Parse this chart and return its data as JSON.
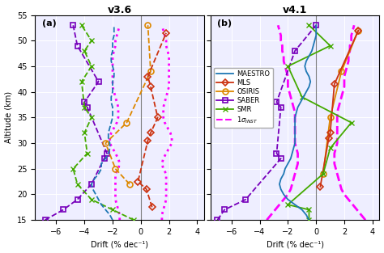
{
  "title_a": "v3.6",
  "title_b": "v4.1",
  "label_a": "(a)",
  "label_b": "(b)",
  "xlabel": "Drift (% dec⁻¹)",
  "ylabel": "Altitude (km)",
  "xlim": [
    -7.5,
    4.5
  ],
  "ylim": [
    15,
    55
  ],
  "yticks": [
    15,
    20,
    25,
    30,
    35,
    40,
    45,
    50,
    55
  ],
  "xticks": [
    -6,
    -4,
    -2,
    0,
    2,
    4
  ],
  "colors": {
    "MAESTRO": "#1e77b4",
    "MLS": "#cc3311",
    "OSIRIS": "#dd8800",
    "SABER": "#7700bb",
    "SMR": "#44aa00",
    "sigma": "#ff00ff"
  },
  "bg_color": "#eeeeff",
  "v36": {
    "MAESTRO_alt": [
      15,
      16,
      17,
      18,
      19,
      20,
      21,
      22,
      23,
      24,
      25,
      26,
      27,
      28,
      29,
      30,
      31,
      32,
      33,
      34,
      35,
      36,
      37,
      38,
      39,
      40,
      41,
      42,
      43,
      44,
      45,
      46,
      47,
      48,
      49,
      50,
      51,
      52,
      53
    ],
    "MAESTRO_drift": [
      -2.0,
      -2.2,
      -2.5,
      -2.8,
      -3.0,
      -3.2,
      -3.4,
      -3.5,
      -3.3,
      -3.0,
      -2.8,
      -2.8,
      -2.5,
      -2.3,
      -2.2,
      -2.2,
      -2.3,
      -2.3,
      -2.2,
      -2.1,
      -2.0,
      -2.0,
      -2.0,
      -2.1,
      -2.1,
      -2.0,
      -2.0,
      -2.0,
      -1.9,
      -1.9,
      -2.0,
      -2.1,
      -2.1,
      -2.0,
      -2.0,
      -2.0,
      -1.9,
      -1.9,
      -1.9
    ],
    "MLS_alt": [
      17.5,
      21,
      22.5,
      30.5,
      32,
      35,
      41,
      43,
      51.5
    ],
    "MLS_drift": [
      0.8,
      0.4,
      -0.2,
      0.5,
      0.7,
      1.2,
      0.7,
      0.5,
      1.8
    ],
    "OSIRIS_alt": [
      22,
      25,
      30,
      34,
      44,
      53
    ],
    "OSIRIS_drift": [
      -0.8,
      -1.8,
      -2.5,
      -1.0,
      0.7,
      0.5
    ],
    "SABER_alt": [
      15,
      17,
      19,
      22,
      27,
      28,
      37,
      38,
      42,
      49,
      53
    ],
    "SABER_drift": [
      -6.8,
      -5.5,
      -4.5,
      -3.5,
      -2.6,
      -2.4,
      -3.8,
      -4.0,
      -3.0,
      -4.5,
      -4.8
    ],
    "SMR_alt": [
      15,
      17,
      19,
      22,
      25,
      28,
      32,
      35,
      37,
      42,
      45,
      48,
      50,
      53
    ],
    "SMR_drift": [
      -0.5,
      -2.0,
      -3.5,
      -4.5,
      -4.8,
      -3.8,
      -4.0,
      -3.5,
      -4.0,
      -4.2,
      -3.5,
      -4.0,
      -3.5,
      -4.2
    ],
    "sigma_alt": [
      15,
      16,
      17,
      18,
      19,
      20,
      21,
      22,
      23,
      24,
      25,
      26,
      27,
      28,
      29,
      30,
      31,
      32,
      33,
      34,
      35,
      36,
      37,
      38,
      39,
      40,
      41,
      42,
      43,
      44,
      45,
      46,
      47,
      48,
      49,
      50,
      51,
      52,
      53
    ],
    "sigma_drift": [
      1.5,
      1.5,
      1.6,
      1.7,
      1.8,
      1.8,
      1.8,
      1.8,
      1.8,
      1.8,
      1.6,
      1.5,
      1.6,
      1.8,
      2.0,
      2.2,
      2.2,
      2.1,
      1.9,
      1.7,
      1.6,
      1.6,
      1.6,
      1.7,
      1.8,
      1.9,
      2.0,
      2.0,
      2.0,
      2.0,
      2.0,
      2.0,
      2.0,
      1.9,
      1.8,
      1.8,
      1.7,
      1.6,
      1.5
    ]
  },
  "v41": {
    "MAESTRO_alt": [
      15,
      16,
      17,
      18,
      19,
      20,
      21,
      22,
      23,
      24,
      25,
      26,
      27,
      28,
      29,
      30,
      31,
      32,
      33,
      34,
      35,
      36,
      37,
      38,
      39,
      40,
      41,
      42,
      43,
      44,
      45,
      46,
      47,
      48,
      49,
      50,
      51,
      52,
      53
    ],
    "MAESTRO_drift": [
      -0.5,
      -0.7,
      -1.0,
      -1.5,
      -2.0,
      -2.3,
      -2.5,
      -2.6,
      -2.5,
      -2.3,
      -2.2,
      -2.0,
      -1.8,
      -1.7,
      -1.6,
      -1.5,
      -1.5,
      -1.5,
      -1.5,
      -1.5,
      -1.5,
      -1.4,
      -1.3,
      -1.1,
      -0.9,
      -0.7,
      -0.5,
      -0.4,
      -0.5,
      -0.7,
      -0.8,
      -0.7,
      -0.5,
      -0.3,
      -0.2,
      -0.1,
      0.0,
      0.0,
      0.0
    ],
    "MLS_alt": [
      21.5,
      31,
      32,
      41.5,
      52
    ],
    "MLS_drift": [
      0.3,
      0.9,
      1.0,
      1.3,
      3.0
    ],
    "OSIRIS_alt": [
      24,
      35,
      44,
      52
    ],
    "OSIRIS_drift": [
      0.5,
      1.0,
      1.8,
      3.0
    ],
    "SABER_alt": [
      15,
      17,
      19,
      27,
      28,
      37,
      38,
      48,
      53
    ],
    "SABER_drift": [
      -7.0,
      -6.5,
      -5.0,
      -2.5,
      -2.8,
      -2.5,
      -2.8,
      -1.5,
      0.0
    ],
    "SMR_alt": [
      15,
      17,
      18,
      24,
      29,
      34,
      39,
      45,
      49,
      53
    ],
    "SMR_drift": [
      -0.5,
      -0.5,
      -2.0,
      0.5,
      1.0,
      2.5,
      -1.0,
      -2.0,
      1.0,
      -0.5
    ],
    "sigma_alt": [
      15,
      16,
      17,
      18,
      19,
      20,
      21,
      22,
      23,
      24,
      25,
      26,
      27,
      28,
      29,
      30,
      31,
      32,
      33,
      34,
      35,
      36,
      37,
      38,
      39,
      40,
      41,
      42,
      43,
      44,
      45,
      46,
      47,
      48,
      49,
      50,
      51,
      52,
      53
    ],
    "sigma_drift": [
      3.5,
      3.2,
      2.9,
      2.6,
      2.3,
      2.0,
      1.8,
      1.7,
      1.6,
      1.5,
      1.4,
      1.3,
      1.3,
      1.3,
      1.4,
      1.5,
      1.5,
      1.5,
      1.5,
      1.5,
      1.5,
      1.5,
      1.6,
      1.7,
      1.8,
      1.9,
      2.0,
      2.0,
      2.0,
      2.1,
      2.2,
      2.3,
      2.3,
      2.4,
      2.4,
      2.5,
      2.5,
      2.6,
      2.7
    ]
  }
}
